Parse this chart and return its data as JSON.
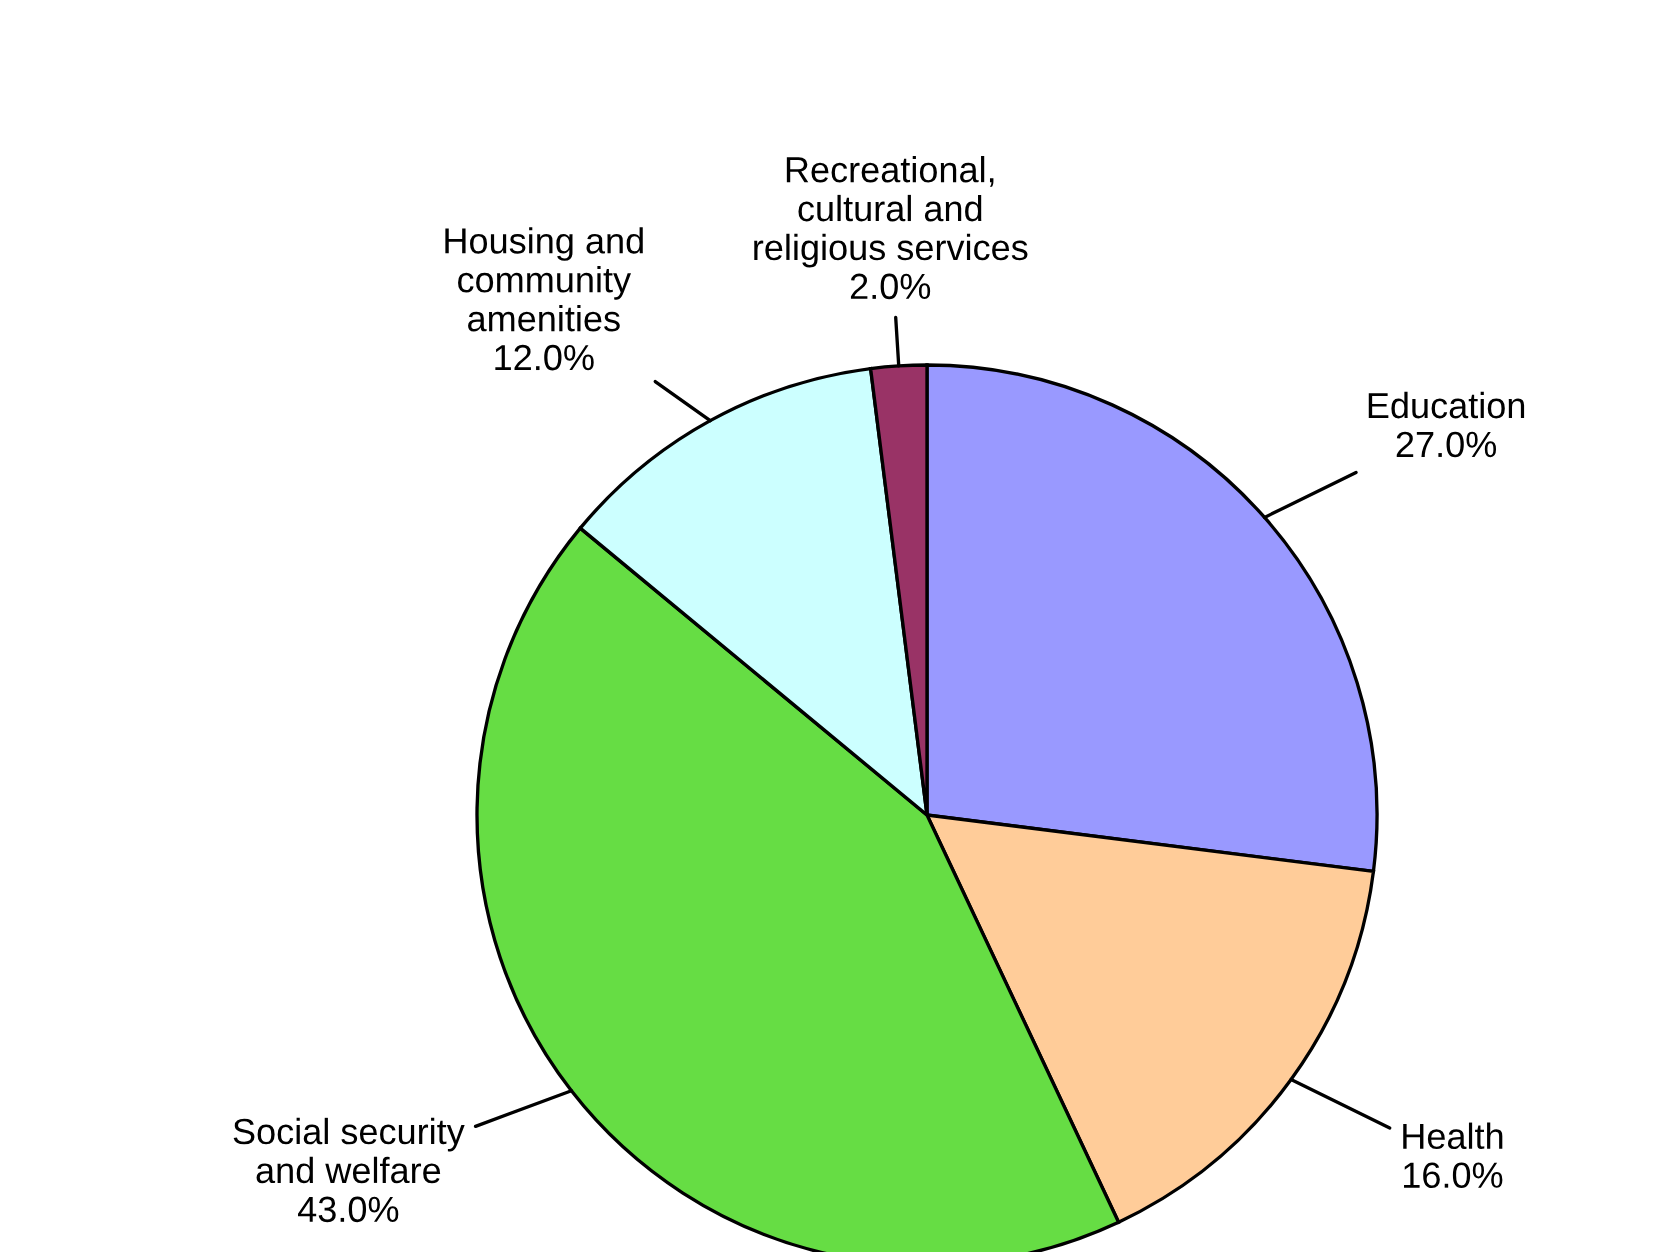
{
  "chart_data": {
    "type": "pie",
    "categories": [
      "Education",
      "Health",
      "Social security\nand welfare",
      "Housing and\ncommunity\namenities",
      "Recreational,\ncultural and\nreligious services"
    ],
    "values": [
      27.0,
      16.0,
      43.0,
      12.0,
      2.0
    ],
    "value_labels": [
      "27.0%",
      "16.0%",
      "43.0%",
      "12.0%",
      "2.0%"
    ],
    "colors": [
      "#9999ff",
      "#ffcc99",
      "#66dd44",
      "#ccffff",
      "#993366"
    ],
    "legend": false
  }
}
